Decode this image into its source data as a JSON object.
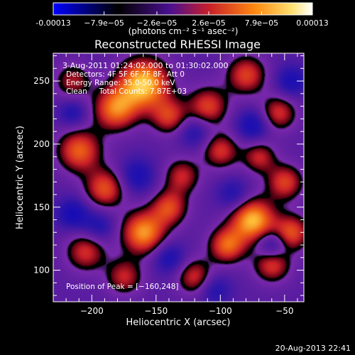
{
  "chart_data": {
    "type": "heatmap",
    "title": "Reconstructed RHESSI Image",
    "xlabel": "Heliocentric X (arcsec)",
    "ylabel": "Heliocentric Y (arcsec)",
    "xlim": [
      -230,
      -35
    ],
    "ylim": [
      75,
      272
    ],
    "x_ticks": [
      -200,
      -150,
      -100,
      -50
    ],
    "y_ticks": [
      100,
      150,
      200,
      250
    ],
    "colorbar": {
      "range": [
        -0.00013,
        0.00013
      ],
      "tick_values": [
        -0.00013,
        -7.9e-05,
        -2.6e-05,
        2.6e-05,
        7.9e-05,
        0.00013
      ],
      "tick_labels": [
        "-0.00013",
        "−7.9e−05",
        "−2.6e−05",
        "2.6e−05",
        "7.9e−05",
        "0.00013"
      ],
      "unit_label": "(photons cm⁻² s⁻¹ asec⁻²)"
    },
    "colormap": [
      "#000000",
      "#3a00a0",
      "#7a1fa8",
      "#c81e2a",
      "#f06a10",
      "#ffd040",
      "#ffffff"
    ],
    "annotations": {
      "time": "3-Aug-2011 01:24:02.000 to 01:30:02.000",
      "detectors": "Detectors: 4F 5F 6F 7F 8F, Att 0",
      "energy": "Energy Range: 35.0-50.0 keV",
      "clean": "Clean     Total Counts: 7.87E+03",
      "peak": "Position of Peak = [−160,248]"
    },
    "peak": [
      -160,
      248
    ],
    "sources": [
      {
        "x": -160,
        "y": 248,
        "amp": 1.0,
        "sigma": 14
      },
      {
        "x": -182,
        "y": 228,
        "amp": 0.75,
        "sigma": 12
      },
      {
        "x": -140,
        "y": 222,
        "amp": 0.55,
        "sigma": 10
      },
      {
        "x": -210,
        "y": 195,
        "amp": 0.7,
        "sigma": 12
      },
      {
        "x": -190,
        "y": 165,
        "amp": 0.65,
        "sigma": 11
      },
      {
        "x": -160,
        "y": 130,
        "amp": 0.85,
        "sigma": 12
      },
      {
        "x": -205,
        "y": 115,
        "amp": 0.55,
        "sigma": 11
      },
      {
        "x": -175,
        "y": 95,
        "amp": 0.5,
        "sigma": 10
      },
      {
        "x": -130,
        "y": 175,
        "amp": 0.5,
        "sigma": 10
      },
      {
        "x": -110,
        "y": 230,
        "amp": 0.6,
        "sigma": 11
      },
      {
        "x": -80,
        "y": 255,
        "amp": 0.6,
        "sigma": 11
      },
      {
        "x": -55,
        "y": 225,
        "amp": 0.55,
        "sigma": 10
      },
      {
        "x": -100,
        "y": 195,
        "amp": 0.55,
        "sigma": 10
      },
      {
        "x": -70,
        "y": 190,
        "amp": 0.5,
        "sigma": 9
      },
      {
        "x": -50,
        "y": 170,
        "amp": 0.6,
        "sigma": 10
      },
      {
        "x": -75,
        "y": 140,
        "amp": 0.95,
        "sigma": 12
      },
      {
        "x": -95,
        "y": 120,
        "amp": 0.7,
        "sigma": 10
      },
      {
        "x": -60,
        "y": 105,
        "amp": 0.6,
        "sigma": 10
      },
      {
        "x": -120,
        "y": 95,
        "amp": 0.55,
        "sigma": 10
      },
      {
        "x": -140,
        "y": 150,
        "amp": 0.6,
        "sigma": 10
      },
      {
        "x": -45,
        "y": 130,
        "amp": 0.65,
        "sigma": 10
      },
      {
        "x": -215,
        "y": 250,
        "amp": 0.45,
        "sigma": 10
      }
    ],
    "negative_sources": [
      {
        "x": -215,
        "y": 145,
        "amp": 0.45,
        "sigma": 9
      },
      {
        "x": -165,
        "y": 175,
        "amp": 0.4,
        "sigma": 10
      },
      {
        "x": -120,
        "y": 210,
        "amp": 0.35,
        "sigma": 9
      },
      {
        "x": -75,
        "y": 215,
        "amp": 0.45,
        "sigma": 9
      },
      {
        "x": -45,
        "y": 250,
        "amp": 0.4,
        "sigma": 9
      },
      {
        "x": -90,
        "y": 160,
        "amp": 0.35,
        "sigma": 9
      },
      {
        "x": -60,
        "y": 120,
        "amp": 0.5,
        "sigma": 8
      },
      {
        "x": -140,
        "y": 110,
        "amp": 0.4,
        "sigma": 9
      },
      {
        "x": -195,
        "y": 135,
        "amp": 0.35,
        "sigma": 9
      },
      {
        "x": -105,
        "y": 85,
        "amp": 0.35,
        "sigma": 9
      },
      {
        "x": -215,
        "y": 225,
        "amp": 0.35,
        "sigma": 8
      }
    ]
  },
  "footer": {
    "timestamp": "20-Aug-2013 22:41"
  }
}
